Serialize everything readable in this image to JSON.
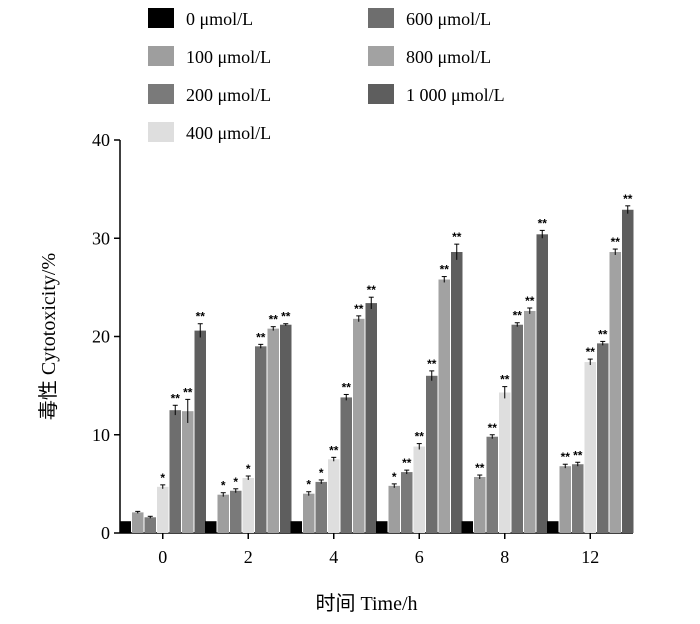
{
  "chart_data": {
    "type": "bar",
    "title": "",
    "xlabel": "时间 Time/h",
    "ylabel": "毒性 Cytotoxicity/%",
    "ylim": [
      0,
      40
    ],
    "yticks": [
      "0",
      "10",
      "20",
      "30",
      "40"
    ],
    "categories": [
      "0",
      "2",
      "4",
      "6",
      "8",
      "12"
    ],
    "grid": false,
    "legend_position": "top",
    "series": [
      {
        "name": "0 μmol/L",
        "color": "#000000",
        "values": [
          1.2,
          1.2,
          1.2,
          1.2,
          1.2,
          1.2
        ],
        "errors": [
          0,
          0,
          0,
          0,
          0,
          0
        ],
        "sig": [
          "",
          "",
          "",
          "",
          "",
          ""
        ]
      },
      {
        "name": "100 μmol/L",
        "color": "#9e9e9e",
        "values": [
          2.1,
          3.9,
          4.0,
          4.8,
          5.7,
          6.8
        ],
        "errors": [
          0.1,
          0.2,
          0.2,
          0.2,
          0.2,
          0.2
        ],
        "sig": [
          "",
          "*",
          "*",
          "*",
          "**",
          "**"
        ]
      },
      {
        "name": "200 μmol/L",
        "color": "#7a7a7a",
        "values": [
          1.6,
          4.3,
          5.2,
          6.2,
          9.8,
          7.0
        ],
        "errors": [
          0.1,
          0.2,
          0.2,
          0.2,
          0.2,
          0.2
        ],
        "sig": [
          "",
          "*",
          "*",
          "**",
          "**",
          "**"
        ]
      },
      {
        "name": "400 μmol/L",
        "color": "#dedede",
        "values": [
          4.7,
          5.6,
          7.5,
          8.8,
          14.3,
          17.4
        ],
        "errors": [
          0.2,
          0.2,
          0.2,
          0.3,
          0.6,
          0.3
        ],
        "sig": [
          "*",
          "*",
          "**",
          "**",
          "**",
          "**"
        ]
      },
      {
        "name": "600 μmol/L",
        "color": "#6e6e6e",
        "values": [
          12.5,
          19.0,
          13.8,
          16.0,
          21.2,
          19.3
        ],
        "errors": [
          0.5,
          0.2,
          0.3,
          0.5,
          0.2,
          0.2
        ],
        "sig": [
          "**",
          "**",
          "**",
          "**",
          "**",
          "**"
        ]
      },
      {
        "name": "800 μmol/L",
        "color": "#a2a2a2",
        "values": [
          12.4,
          20.8,
          21.8,
          25.8,
          22.6,
          28.6
        ],
        "errors": [
          1.2,
          0.2,
          0.3,
          0.3,
          0.3,
          0.3
        ],
        "sig": [
          "**",
          "**",
          "**",
          "**",
          "**",
          "**"
        ]
      },
      {
        "name": "1 000 μmol/L",
        "color": "#5e5e5e",
        "values": [
          20.6,
          21.2,
          23.4,
          28.6,
          30.4,
          32.9
        ],
        "errors": [
          0.7,
          0.1,
          0.6,
          0.8,
          0.4,
          0.4
        ],
        "sig": [
          "**",
          "**",
          "**",
          "**",
          "**",
          "**"
        ]
      }
    ]
  }
}
